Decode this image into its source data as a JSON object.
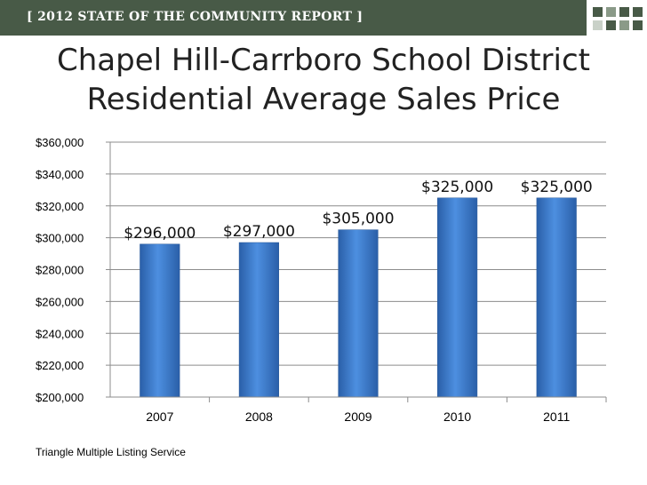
{
  "header": {
    "banner_text": "[ 2012 STATE OF THE COMMUNITY REPORT ]",
    "banner_color": "#485a47",
    "square_colors": [
      "#485a47",
      "#8a9a88",
      "#c9d1c8"
    ]
  },
  "title_line1": "Chapel Hill-Carrboro School District",
  "title_line2": "Residential Average Sales Price",
  "source": "Triangle Multiple Listing Service",
  "chart_data": {
    "type": "bar",
    "categories": [
      "2007",
      "2008",
      "2009",
      "2010",
      "2011"
    ],
    "values": [
      296000,
      297000,
      305000,
      325000,
      325000
    ],
    "data_labels": [
      "$296,000",
      "$297,000",
      "$305,000",
      "$325,000",
      "$325,000"
    ],
    "yticks": [
      "$200,000",
      "$220,000",
      "$240,000",
      "$260,000",
      "$280,000",
      "$300,000",
      "$320,000",
      "$340,000",
      "$360,000"
    ],
    "ylim": [
      200000,
      360000
    ],
    "grid": true,
    "bar_color": "#3f7fd0"
  }
}
